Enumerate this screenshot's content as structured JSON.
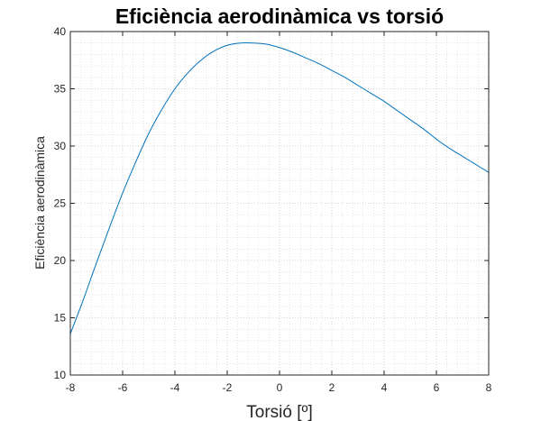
{
  "chart_data": {
    "type": "line",
    "title": "Eficiència aerodinàmica vs torsió",
    "xlabel": "Torsió [º]",
    "ylabel": "Eficiència aerodinàmica",
    "xlim": [
      -8,
      8
    ],
    "ylim": [
      10,
      40
    ],
    "xticks": [
      "-8",
      "-6",
      "-4",
      "-2",
      "0",
      "2",
      "4",
      "6",
      "8"
    ],
    "yticks": [
      "10",
      "15",
      "20",
      "25",
      "30",
      "35",
      "40"
    ],
    "grid": true,
    "minor_grid": true,
    "series": [
      {
        "color": "#0072BD",
        "x": [
          -8,
          -7.5,
          -7,
          -6.5,
          -6,
          -5.5,
          -5,
          -4.5,
          -4,
          -3.5,
          -3,
          -2.5,
          -2,
          -1.5,
          -1,
          -0.5,
          0,
          0.5,
          1,
          1.5,
          2,
          2.5,
          3,
          3.5,
          4,
          4.5,
          5,
          5.5,
          6,
          6.5,
          7,
          7.5,
          8
        ],
        "y": [
          13.6,
          16.6,
          19.8,
          22.9,
          25.9,
          28.6,
          31.1,
          33.2,
          35.0,
          36.4,
          37.5,
          38.3,
          38.8,
          39.0,
          39.0,
          38.9,
          38.6,
          38.2,
          37.7,
          37.2,
          36.6,
          36.0,
          35.3,
          34.6,
          33.9,
          33.1,
          32.3,
          31.5,
          30.6,
          29.8,
          29.1,
          28.4,
          27.7
        ]
      }
    ]
  }
}
